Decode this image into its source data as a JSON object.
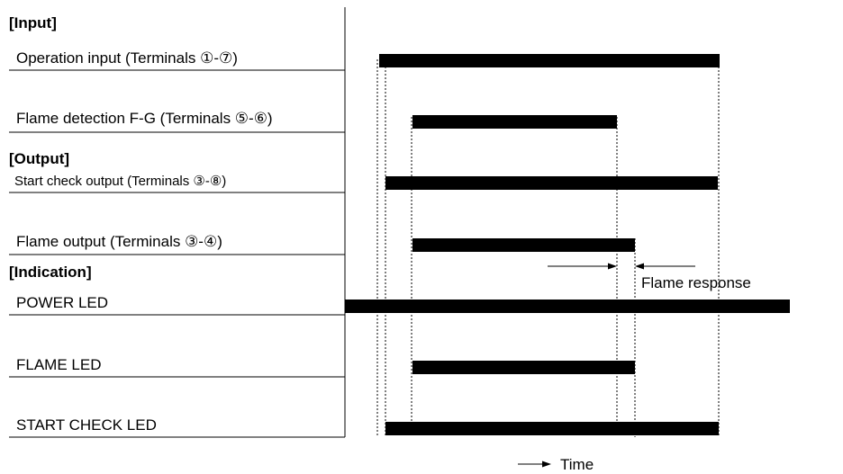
{
  "sections": {
    "input": "[Input]",
    "output": "[Output]",
    "indication": "[Indication]"
  },
  "signals": [
    {
      "id": "operation-input",
      "label": "Operation input (Terminals ①-⑦)"
    },
    {
      "id": "flame-detection",
      "label": "Flame detection F-G (Terminals ⑤-⑥)"
    },
    {
      "id": "start-check-output",
      "label": "Start check output (Terminals ③-⑧)"
    },
    {
      "id": "flame-output",
      "label": "Flame output (Terminals ③-④)"
    },
    {
      "id": "power-led",
      "label": "POWER LED"
    },
    {
      "id": "flame-led",
      "label": "FLAME LED"
    },
    {
      "id": "start-check-led",
      "label": "START CHECK LED"
    }
  ],
  "annotations": {
    "flame_response": "Flame response",
    "time": "Time"
  }
}
